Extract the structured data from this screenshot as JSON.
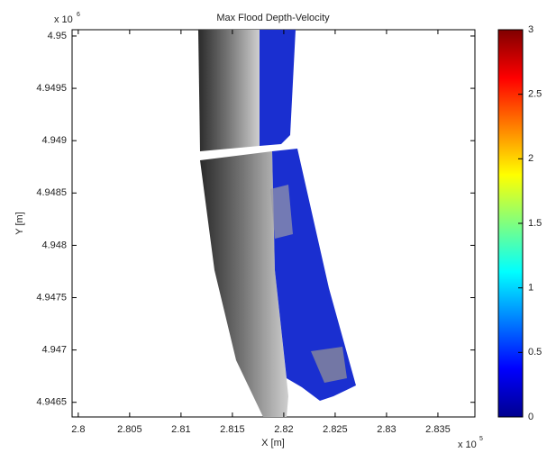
{
  "chart_data": {
    "type": "image",
    "title": "Max Flood Depth-Velocity",
    "x_label": "X [m]",
    "y_label": "Y [m]",
    "x_multiplier": {
      "base": "x 10",
      "exponent": "5"
    },
    "y_multiplier": {
      "base": "x 10",
      "exponent": "6"
    },
    "xlim": [
      2.7994,
      2.8386
    ],
    "xticks": [
      2.8,
      2.805,
      2.81,
      2.815,
      2.82,
      2.825,
      2.83,
      2.835
    ],
    "ylim": [
      4.94636,
      4.95006
    ],
    "yticks": [
      4.9465,
      4.947,
      4.9475,
      4.948,
      4.9485,
      4.949,
      4.9495,
      4.95
    ],
    "colorbar": {
      "clim": [
        0,
        3
      ],
      "ticks": [
        0,
        0.5,
        1,
        1.5,
        2,
        2.5,
        3
      ],
      "colormap": "jet"
    }
  }
}
